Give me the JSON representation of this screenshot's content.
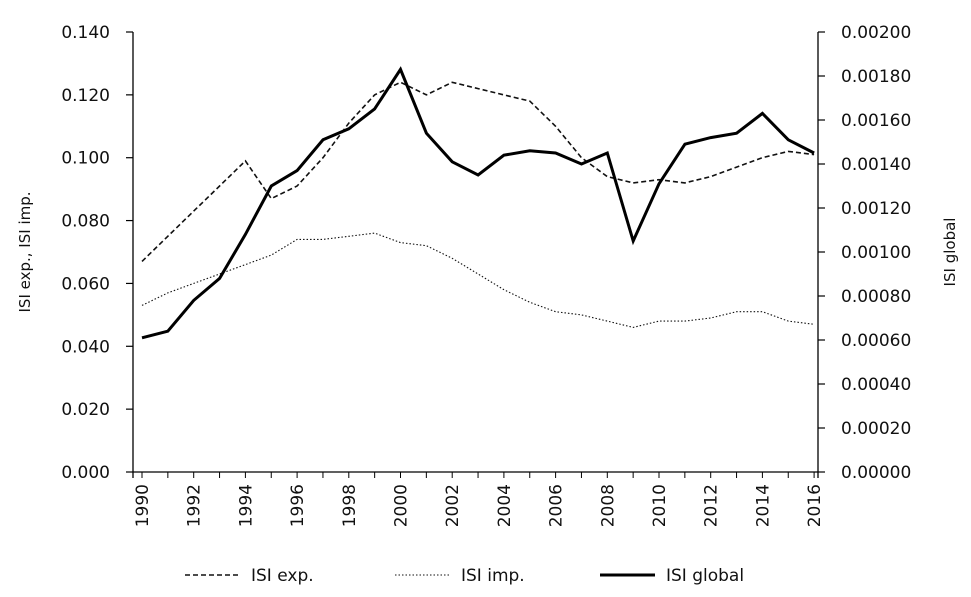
{
  "chart_data": {
    "type": "line",
    "x": [
      1990,
      1991,
      1992,
      1993,
      1994,
      1995,
      1996,
      1997,
      1998,
      1999,
      2000,
      2001,
      2002,
      2003,
      2004,
      2005,
      2006,
      2007,
      2008,
      2009,
      2010,
      2011,
      2012,
      2013,
      2014,
      2015,
      2016
    ],
    "x_tick_labels": [
      "1990",
      "1992",
      "1994",
      "1996",
      "1998",
      "2000",
      "2002",
      "2004",
      "2006",
      "2008",
      "2010",
      "2012",
      "2014",
      "2016"
    ],
    "y_left": {
      "label": "ISI exp., ISI imp.",
      "ylim": [
        0,
        0.14
      ],
      "tick_labels": [
        "0.000",
        "0.020",
        "0.040",
        "0.060",
        "0.080",
        "0.100",
        "0.120",
        "0.140"
      ]
    },
    "y_right": {
      "label": "ISI global",
      "ylim": [
        0,
        0.002
      ],
      "tick_labels": [
        "0.00000",
        "0.00020",
        "0.00040",
        "0.00060",
        "0.00080",
        "0.00100",
        "0.00120",
        "0.00140",
        "0.00160",
        "0.00180",
        "0.00200"
      ]
    },
    "series": [
      {
        "name": "ISI exp.",
        "axis": "left",
        "style": "dashed",
        "color": "#111111",
        "values": [
          0.067,
          0.075,
          0.083,
          0.091,
          0.099,
          0.087,
          0.091,
          0.1,
          0.111,
          0.12,
          0.124,
          0.12,
          0.124,
          0.122,
          0.12,
          0.118,
          0.11,
          0.1,
          0.094,
          0.092,
          0.093,
          0.092,
          0.094,
          0.097,
          0.1,
          0.102,
          0.101
        ]
      },
      {
        "name": "ISI imp.",
        "axis": "left",
        "style": "dotted",
        "color": "#111111",
        "values": [
          0.053,
          0.057,
          0.06,
          0.063,
          0.066,
          0.069,
          0.074,
          0.074,
          0.075,
          0.076,
          0.073,
          0.072,
          0.068,
          0.063,
          0.058,
          0.054,
          0.051,
          0.05,
          0.048,
          0.046,
          0.048,
          0.048,
          0.049,
          0.051,
          0.051,
          0.048,
          0.047
        ]
      },
      {
        "name": "ISI global",
        "axis": "right",
        "style": "solid-thick",
        "color": "#000000",
        "values": [
          0.00061,
          0.00064,
          0.00078,
          0.00088,
          0.00108,
          0.0013,
          0.00137,
          0.00151,
          0.00156,
          0.00165,
          0.00183,
          0.00154,
          0.00141,
          0.00135,
          0.00144,
          0.00146,
          0.00145,
          0.0014,
          0.00145,
          0.00105,
          0.00131,
          0.00149,
          0.00152,
          0.00154,
          0.00163,
          0.00151,
          0.00145
        ]
      }
    ],
    "grid": false,
    "legend": {
      "placement": "bottom"
    }
  }
}
